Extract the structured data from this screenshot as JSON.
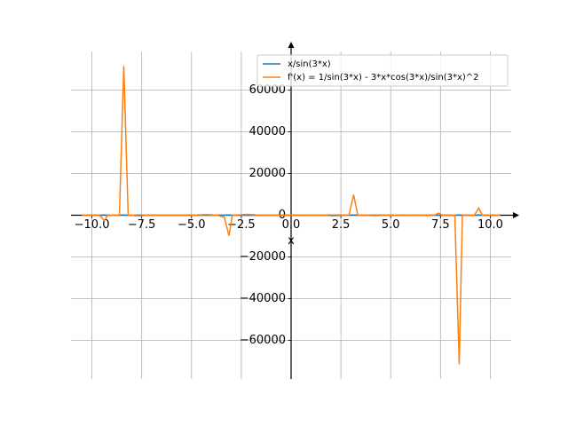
{
  "chart_data": {
    "type": "line",
    "xlabel": "x",
    "x": [
      -10.5,
      -9.9,
      -9.6,
      -9.38,
      -9.2,
      -8.62,
      -8.4,
      -8.18,
      -7.6,
      -7.2,
      -6.3,
      -5.0,
      -4.2,
      -3.7,
      -3.35,
      -3.12,
      -2.95,
      -2.2,
      -1.5,
      0,
      1.5,
      2.1,
      2.9,
      3.14,
      3.35,
      4.2,
      5.0,
      6.3,
      7.2,
      7.4,
      7.6,
      8.22,
      8.44,
      8.6,
      9.2,
      9.42,
      9.6,
      10.5
    ],
    "series": [
      {
        "name": "x/sin(3*x)",
        "color": "#1f77b4",
        "values": [
          -10.5,
          -10.3,
          -11,
          130,
          -9.5,
          20,
          125,
          -40,
          -8,
          -7.3,
          -6.5,
          8,
          4.3,
          -4.5,
          6,
          126,
          7,
          -3.6,
          -1.5,
          0.33,
          1.5,
          0.12,
          3.8,
          126,
          -5,
          4.3,
          8,
          6.5,
          -7.3,
          20,
          -8,
          -40,
          125,
          25,
          -9.5,
          130,
          -11,
          -10.5
        ]
      },
      {
        "name": "f'(x) = 1/sin(3*x) - 3*x*cos(3*x)/sin(3*x)^2",
        "color": "#ff7f0e",
        "values": [
          0,
          0,
          -200,
          -2500,
          0,
          0,
          71500,
          0,
          -300,
          0,
          100,
          0,
          300,
          0,
          -1000,
          -9800,
          0,
          400,
          0,
          0,
          0,
          -300,
          0,
          9800,
          0,
          -200,
          0,
          -100,
          0,
          1000,
          0,
          0,
          -71500,
          0,
          0,
          3400,
          0,
          0
        ]
      }
    ],
    "xlim": [
      -11.05,
      11.05
    ],
    "ylim": [
      -78500,
      78500
    ],
    "xticks": [
      {
        "value": -10,
        "label": "−10.0"
      },
      {
        "value": -7.5,
        "label": "−7.5"
      },
      {
        "value": -5,
        "label": "−5.0"
      },
      {
        "value": -2.5,
        "label": "−2.5"
      },
      {
        "value": 0,
        "label": "0.0"
      },
      {
        "value": 2.5,
        "label": "2.5"
      },
      {
        "value": 5,
        "label": "5.0"
      },
      {
        "value": 7.5,
        "label": "7.5"
      },
      {
        "value": 10,
        "label": "10.0"
      }
    ],
    "yticks": [
      {
        "value": -60000,
        "label": "−60000"
      },
      {
        "value": -40000,
        "label": "−40000"
      },
      {
        "value": -20000,
        "label": "−20000"
      },
      0,
      20000,
      40000,
      60000
    ],
    "grid": true,
    "legend": "upper right"
  }
}
